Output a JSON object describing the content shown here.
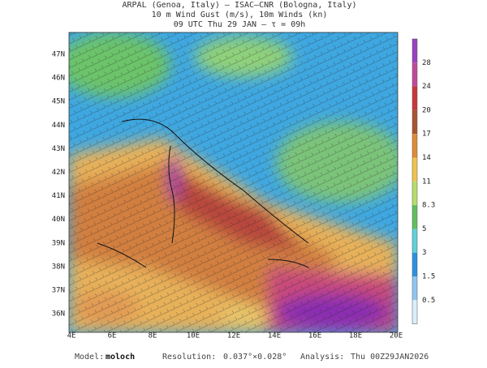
{
  "header": {
    "lines": [
      "ARPAL (Genoa, Italy)  –  ISAC–CNR (Bologna, Italy)",
      "10 m Wind Gust (m/s), 10m Winds (kn)",
      "09 UTC Thu 29 JAN  –  τ = 09h"
    ]
  },
  "map": {
    "lat_labels": [
      "47N",
      "46N",
      "45N",
      "44N",
      "43N",
      "42N",
      "41N",
      "40N",
      "39N",
      "38N",
      "37N",
      "36N"
    ],
    "lon_labels": [
      "4E",
      "6E",
      "8E",
      "10E",
      "12E",
      "14E",
      "16E",
      "18E",
      "20E"
    ]
  },
  "colorbar": {
    "ticks": [
      28,
      24,
      20,
      17,
      14,
      11,
      8.3,
      5,
      3,
      1.5,
      0.5
    ]
  },
  "footer": {
    "items": [
      {
        "label": "Model:",
        "value": "moloch"
      },
      {
        "label": "Resolution:",
        "value": "0.037°×0.028°"
      },
      {
        "label": "Analysis:",
        "value": "Thu 00Z29JAN2026"
      }
    ]
  }
}
